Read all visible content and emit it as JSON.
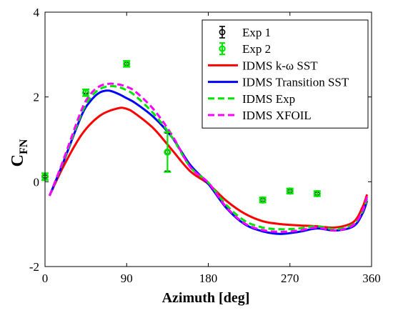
{
  "chart_data": {
    "type": "line",
    "title": "",
    "xlabel": "Azimuth [deg]",
    "ylabel_main": "C",
    "ylabel_sub": "FN",
    "xlim": [
      0,
      360
    ],
    "ylim": [
      -2,
      4
    ],
    "xticks": [
      0,
      90,
      180,
      270,
      360
    ],
    "yticks": [
      -2,
      0,
      2,
      4
    ],
    "xtick_labels": [
      "0",
      "90",
      "180",
      "270",
      "360"
    ],
    "ytick_labels": [
      "-2",
      "0",
      "2",
      "4"
    ],
    "grid": false,
    "legend_position": "top-right",
    "error_series": [
      {
        "name": "Exp 1",
        "color": "#000000",
        "marker": "circle",
        "points": [
          {
            "x": 0,
            "y": 0.12,
            "err": 0.03
          },
          {
            "x": 45,
            "y": 2.12,
            "err": 0.04
          },
          {
            "x": 90,
            "y": 2.78,
            "err": 0.03
          },
          {
            "x": 135,
            "y": 0.7,
            "err": 0.45
          },
          {
            "x": 240,
            "y": -0.43,
            "err": 0.03
          },
          {
            "x": 270,
            "y": -0.22,
            "err": 0.03
          },
          {
            "x": 300,
            "y": -0.28,
            "err": 0.03
          }
        ]
      },
      {
        "name": "Exp 2",
        "color": "#00e600",
        "marker": "circle",
        "points": [
          {
            "x": 0,
            "y": 0.12,
            "err": 0.08
          },
          {
            "x": 45,
            "y": 2.1,
            "err": 0.08
          },
          {
            "x": 90,
            "y": 2.78,
            "err": 0.07
          },
          {
            "x": 135,
            "y": 0.7,
            "err": 0.47
          },
          {
            "x": 240,
            "y": -0.43,
            "err": 0.06
          },
          {
            "x": 270,
            "y": -0.22,
            "err": 0.06
          },
          {
            "x": 300,
            "y": -0.28,
            "err": 0.06
          }
        ]
      }
    ],
    "series": [
      {
        "name": "IDMS k-ω SST",
        "color": "#ff0000",
        "dash": "solid",
        "x": [
          5,
          20,
          40,
          60,
          80,
          90,
          100,
          120,
          140,
          160,
          180,
          200,
          220,
          240,
          260,
          280,
          300,
          320,
          340,
          350,
          355
        ],
        "y": [
          -0.33,
          0.35,
          1.1,
          1.55,
          1.73,
          1.72,
          1.6,
          1.25,
          0.75,
          0.25,
          -0.05,
          -0.45,
          -0.75,
          -0.93,
          -1.0,
          -1.03,
          -1.05,
          -1.08,
          -0.95,
          -0.6,
          -0.3
        ]
      },
      {
        "name": "IDMS Transition SST",
        "color": "#0000ff",
        "dash": "solid",
        "x": [
          5,
          20,
          40,
          50,
          60,
          70,
          80,
          90,
          100,
          120,
          140,
          160,
          180,
          200,
          220,
          240,
          260,
          280,
          300,
          320,
          340,
          350,
          355
        ],
        "y": [
          -0.33,
          0.45,
          1.55,
          1.9,
          2.1,
          2.15,
          2.08,
          1.97,
          1.85,
          1.52,
          1.05,
          0.4,
          -0.05,
          -0.62,
          -1.0,
          -1.17,
          -1.23,
          -1.18,
          -1.1,
          -1.15,
          -1.05,
          -0.75,
          -0.45
        ]
      },
      {
        "name": "IDMS Exp",
        "color": "#00e600",
        "dash": "dashed",
        "x": [
          5,
          20,
          40,
          50,
          60,
          70,
          80,
          90,
          100,
          120,
          140,
          160,
          180,
          200,
          220,
          240,
          260,
          280,
          300,
          320,
          340,
          350,
          355
        ],
        "y": [
          -0.33,
          0.47,
          1.6,
          1.98,
          2.18,
          2.25,
          2.24,
          2.16,
          2.02,
          1.6,
          1.05,
          0.35,
          -0.02,
          -0.55,
          -0.92,
          -1.08,
          -1.12,
          -1.1,
          -1.05,
          -1.12,
          -1.0,
          -0.7,
          -0.4
        ]
      },
      {
        "name": "IDMS XFOIL",
        "color": "#ff00ff",
        "dash": "dashed",
        "x": [
          5,
          20,
          40,
          50,
          60,
          70,
          80,
          90,
          100,
          120,
          140,
          160,
          180,
          200,
          220,
          240,
          260,
          280,
          300,
          320,
          340,
          350,
          355
        ],
        "y": [
          -0.33,
          0.5,
          1.68,
          2.06,
          2.25,
          2.31,
          2.3,
          2.24,
          2.12,
          1.7,
          1.1,
          0.35,
          -0.02,
          -0.6,
          -0.98,
          -1.14,
          -1.18,
          -1.15,
          -1.08,
          -1.15,
          -1.02,
          -0.68,
          -0.35
        ]
      }
    ]
  }
}
